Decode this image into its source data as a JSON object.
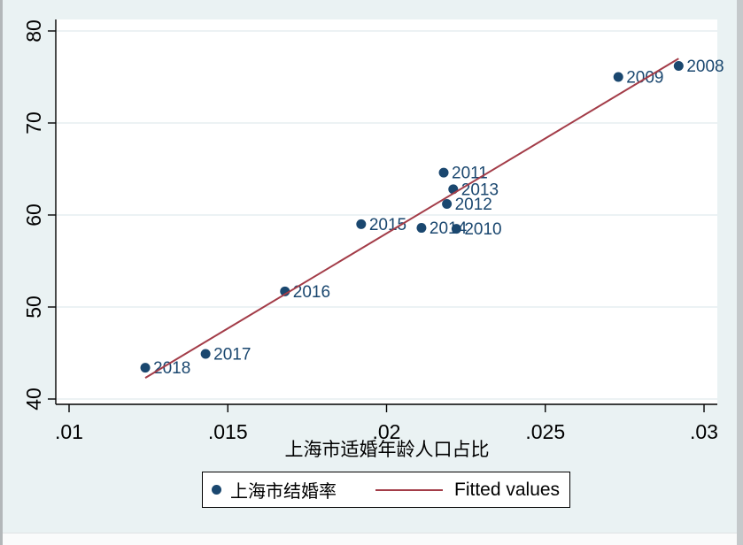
{
  "window": {
    "app": "graph-window",
    "title": ""
  },
  "colors": {
    "background": "#eaf2f3",
    "plot_background": "#ffffff",
    "gridline": "#e0ebee",
    "axis": "#000000",
    "marker": "#1a476f",
    "marker_label": "#1a476f",
    "fitted_line": "#a33c48",
    "legend_background": "#ffffff",
    "legend_border": "#000000",
    "window_edge_left": "#b3b7b9",
    "window_edge_right": "#c5c9cb",
    "window_edge_bottom": "#fafbfb"
  },
  "chart_data": {
    "type": "scatter",
    "title": "",
    "subtitle": "",
    "xlabel": "上海市适婚年龄人口占比",
    "ylabel": "",
    "xlim": [
      0.0096,
      0.0304
    ],
    "ylim": [
      39.4,
      81.2
    ],
    "grid": "horizontal-only",
    "legend_position": "bottom-center",
    "x_ticks": {
      "values": [
        0.01,
        0.015,
        0.02,
        0.025,
        0.03
      ],
      "labels": [
        ".01",
        ".015",
        ".02",
        ".025",
        ".03"
      ]
    },
    "y_ticks": {
      "values": [
        40,
        50,
        60,
        70,
        80
      ],
      "labels": [
        "40",
        "50",
        "60",
        "70",
        "80"
      ]
    },
    "series": [
      {
        "name": "上海市结婚率",
        "type": "scatter",
        "marker": "filled-circle",
        "color": "#1a476f",
        "label_field": "year",
        "points": [
          {
            "year": "2008",
            "x": 0.0292,
            "y": 76.2
          },
          {
            "year": "2009",
            "x": 0.0273,
            "y": 75.0
          },
          {
            "year": "2011",
            "x": 0.0218,
            "y": 64.6
          },
          {
            "year": "2013",
            "x": 0.0221,
            "y": 62.8
          },
          {
            "year": "2012",
            "x": 0.0219,
            "y": 61.2
          },
          {
            "year": "2015",
            "x": 0.0192,
            "y": 59.0
          },
          {
            "year": "2014",
            "x": 0.0211,
            "y": 58.6
          },
          {
            "year": "2010",
            "x": 0.0222,
            "y": 58.5
          },
          {
            "year": "2016",
            "x": 0.0168,
            "y": 51.7
          },
          {
            "year": "2017",
            "x": 0.0143,
            "y": 44.9
          },
          {
            "year": "2018",
            "x": 0.0124,
            "y": 43.4
          }
        ]
      },
      {
        "name": "Fitted values",
        "type": "line",
        "color": "#a33c48",
        "points": [
          {
            "x": 0.0124,
            "y": 42.3
          },
          {
            "x": 0.0292,
            "y": 77.0
          }
        ]
      }
    ]
  },
  "legend": {
    "scatter_label": "上海市结婚率",
    "fitted_label": "Fitted values"
  }
}
